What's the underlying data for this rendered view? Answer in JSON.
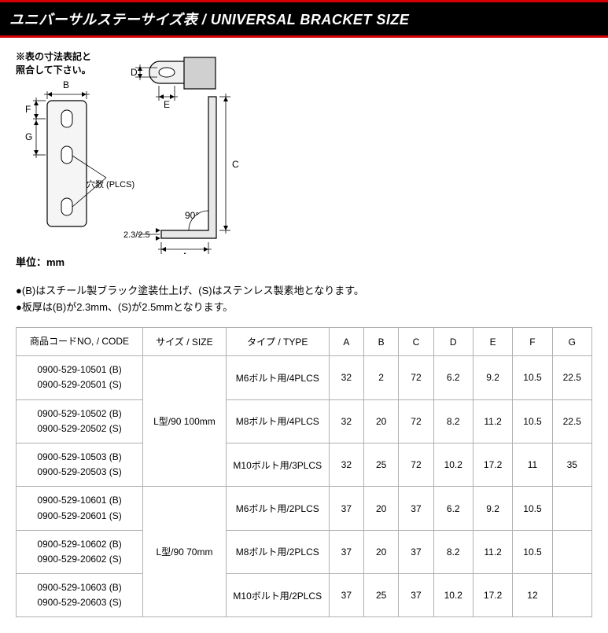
{
  "title": "ユニバーサルステーサイズ表 / UNIVERSAL BRACKET SIZE",
  "diagram": {
    "note_line1": "※表の寸法表記と",
    "note_line2": "照合して下さい。",
    "label_A": "A",
    "label_B": "B",
    "label_C": "C",
    "label_D": "D",
    "label_E": "E",
    "label_F": "F",
    "label_G": "G",
    "label_holes": "穴数 (PLCS)",
    "label_angle": "90°",
    "label_thickness": "2.3/2.5",
    "unit_label": "単位：mm",
    "colors": {
      "stroke": "#000000",
      "fill_light": "#f5f5f5",
      "fill_dark": "#c8c8c8",
      "background": "#ffffff"
    },
    "line_width_main": 1.2,
    "line_width_dim": 0.8
  },
  "notes": {
    "bullet": "●",
    "line1": "(B)はスチール製ブラック塗装仕上げ、(S)はステンレス製素地となります。",
    "line2": "板厚は(B)が2.3mm、(S)が2.5mmとなります。"
  },
  "table": {
    "headers": {
      "code": "商品コードNO, / CODE",
      "size": "サイズ / SIZE",
      "type": "タイプ / TYPE",
      "A": "A",
      "B": "B",
      "C": "C",
      "D": "D",
      "E": "E",
      "F": "F",
      "G": "G"
    },
    "groups": [
      {
        "size": "L型/90 100mm",
        "rows": [
          {
            "code1": "0900-529-10501 (B)",
            "code2": "0900-529-20501 (S)",
            "type": "M6ボルト用/4PLCS",
            "A": "32",
            "B": "2",
            "C": "72",
            "D": "6.2",
            "E": "9.2",
            "F": "10.5",
            "G": "22.5"
          },
          {
            "code1": "0900-529-10502 (B)",
            "code2": "0900-529-20502 (S)",
            "type": "M8ボルト用/4PLCS",
            "A": "32",
            "B": "20",
            "C": "72",
            "D": "8.2",
            "E": "11.2",
            "F": "10.5",
            "G": "22.5"
          },
          {
            "code1": "0900-529-10503 (B)",
            "code2": "0900-529-20503 (S)",
            "type": "M10ボルト用/3PLCS",
            "A": "32",
            "B": "25",
            "C": "72",
            "D": "10.2",
            "E": "17.2",
            "F": "11",
            "G": "35"
          }
        ]
      },
      {
        "size": "L型/90 70mm",
        "rows": [
          {
            "code1": "0900-529-10601 (B)",
            "code2": "0900-529-20601 (S)",
            "type": "M6ボルト用/2PLCS",
            "A": "37",
            "B": "20",
            "C": "37",
            "D": "6.2",
            "E": "9.2",
            "F": "10.5",
            "G": ""
          },
          {
            "code1": "0900-529-10602 (B)",
            "code2": "0900-529-20602 (S)",
            "type": "M8ボルト用/2PLCS",
            "A": "37",
            "B": "20",
            "C": "37",
            "D": "8.2",
            "E": "11.2",
            "F": "10.5",
            "G": ""
          },
          {
            "code1": "0900-529-10603 (B)",
            "code2": "0900-529-20603 (S)",
            "type": "M10ボルト用/2PLCS",
            "A": "37",
            "B": "25",
            "C": "37",
            "D": "10.2",
            "E": "17.2",
            "F": "12",
            "G": ""
          }
        ]
      }
    ],
    "colors": {
      "border": "#b0b0b0",
      "header_bg": "#ffffff",
      "row_bg": "#ffffff"
    }
  }
}
